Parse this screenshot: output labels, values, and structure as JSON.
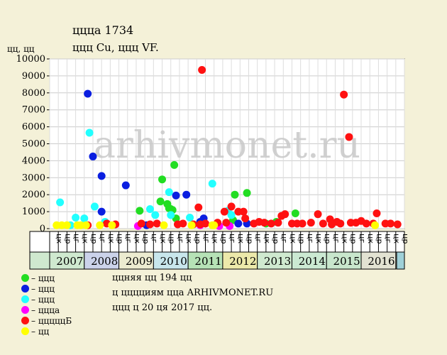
{
  "header": {
    "title": "ццца 1734",
    "subtitle": "ццц Cu, ццц VF.",
    "y_unit": "цц, цц"
  },
  "watermark": "arhivmonet.ru",
  "legend": [
    {
      "label": "– ццц",
      "color": "#22dd22"
    },
    {
      "label": "– ццц",
      "color": "#0a1ee0"
    },
    {
      "label": "– ццц",
      "color": "#22ffff"
    },
    {
      "label": "– ццца",
      "color": "#ff00ff"
    },
    {
      "label": "– цццццБ",
      "color": "#ff1111"
    },
    {
      "label": "– цц",
      "color": "#ffff00"
    }
  ],
  "notes": [
    "ццняя цц 194 цц",
    "ц цццциям ццa ARHIVMONET.RU",
    "ццц ц 20 ця 2017 цц."
  ],
  "chart_data": {
    "type": "scatter",
    "ylim": [
      0,
      10000
    ],
    "yticks": [
      0,
      1000,
      2000,
      3000,
      4000,
      5000,
      6000,
      7000,
      8000,
      9000,
      10000
    ],
    "xlim": [
      2006.5,
      2016.75
    ],
    "quarter_labels": [
      "цк",
      "цр",
      "цг",
      "цк",
      "цр",
      "цг",
      "цк",
      "цр",
      "цг",
      "цк",
      "цр",
      "цг",
      "цк",
      "цр",
      "цг",
      "цк",
      "цр",
      "цг",
      "цк",
      "цр",
      "цг",
      "цк",
      "цр",
      "цг",
      "цк",
      "цр",
      "цг",
      "цк",
      "цр",
      "цг",
      "цк",
      "цр",
      "цг",
      "цк",
      "цр",
      "цг",
      "цк",
      "цр",
      "цг",
      "цк",
      "цр",
      "цг"
    ],
    "years": [
      {
        "label": "2007",
        "color": "#cfe9cf"
      },
      {
        "label": "2008",
        "color": "#cbd2ea"
      },
      {
        "label": "2009",
        "color": "#ecebd0"
      },
      {
        "label": "2010",
        "color": "#c8e6ec"
      },
      {
        "label": "2011",
        "color": "#b6e2b6"
      },
      {
        "label": "2012",
        "color": "#ece9aa"
      },
      {
        "label": "2013",
        "color": "#cfe9cf"
      },
      {
        "label": "2014",
        "color": "#cbe9d2"
      },
      {
        "label": "2015",
        "color": "#c8e6cc"
      },
      {
        "label": "2016",
        "color": "#e2e2d2"
      }
    ],
    "year_start": 2006.5,
    "year_end_partial": 2016.75,
    "series": [
      {
        "name": "ццц",
        "color": "#22dd22",
        "points": [
          [
            2009.1,
            1050
          ],
          [
            2009.7,
            1600
          ],
          [
            2009.75,
            2900
          ],
          [
            2009.9,
            1450
          ],
          [
            2009.95,
            1200
          ],
          [
            2010.0,
            1150
          ],
          [
            2010.05,
            1100
          ],
          [
            2010.1,
            3750
          ],
          [
            2010.15,
            600
          ],
          [
            2011.85,
            2000
          ],
          [
            2012.2,
            2100
          ],
          [
            2011.8,
            500
          ],
          [
            2012.75,
            300
          ],
          [
            2013.6,
            900
          ],
          [
            2013.05,
            400
          ]
        ]
      },
      {
        "name": "ццц",
        "color": "#0a1ee0",
        "points": [
          [
            2007.6,
            7950
          ],
          [
            2007.75,
            4250
          ],
          [
            2008.0,
            3100
          ],
          [
            2008.0,
            1000
          ],
          [
            2008.7,
            2550
          ],
          [
            2009.3,
            200
          ],
          [
            2010.15,
            1950
          ],
          [
            2010.45,
            2000
          ],
          [
            2010.95,
            600
          ],
          [
            2010.85,
            400
          ],
          [
            2012.2,
            300
          ],
          [
            2011.95,
            300
          ]
        ]
      },
      {
        "name": "ццц",
        "color": "#22ffff",
        "points": [
          [
            2006.8,
            1550
          ],
          [
            2007.25,
            650
          ],
          [
            2007.5,
            600
          ],
          [
            2007.65,
            5650
          ],
          [
            2007.8,
            1300
          ],
          [
            2008.1,
            400
          ],
          [
            2009.4,
            1150
          ],
          [
            2009.55,
            800
          ],
          [
            2009.95,
            2150
          ],
          [
            2010.0,
            800
          ],
          [
            2010.55,
            650
          ],
          [
            2011.2,
            2650
          ],
          [
            2011.65,
            1050
          ],
          [
            2011.75,
            800
          ],
          [
            2007.1,
            200
          ]
        ]
      },
      {
        "name": "ццца",
        "color": "#ff00ff",
        "points": [
          [
            2009.05,
            150
          ],
          [
            2010.85,
            200
          ],
          [
            2011.4,
            150
          ],
          [
            2011.7,
            150
          ]
        ]
      },
      {
        "name": "цццццБ",
        "color": "#ff1111",
        "points": [
          [
            2007.6,
            200
          ],
          [
            2008.15,
            300
          ],
          [
            2008.4,
            250
          ],
          [
            2009.15,
            300
          ],
          [
            2009.4,
            250
          ],
          [
            2009.6,
            300
          ],
          [
            2010.2,
            250
          ],
          [
            2010.35,
            300
          ],
          [
            2010.65,
            250
          ],
          [
            2010.85,
            250
          ],
          [
            2011.0,
            300
          ],
          [
            2010.8,
            1250
          ],
          [
            2010.9,
            9350
          ],
          [
            2011.35,
            350
          ],
          [
            2011.55,
            1000
          ],
          [
            2011.6,
            350
          ],
          [
            2011.75,
            1300
          ],
          [
            2011.95,
            1000
          ],
          [
            2012.1,
            1000
          ],
          [
            2012.15,
            600
          ],
          [
            2012.4,
            300
          ],
          [
            2012.55,
            400
          ],
          [
            2012.7,
            350
          ],
          [
            2012.9,
            300
          ],
          [
            2013.1,
            350
          ],
          [
            2013.2,
            750
          ],
          [
            2013.3,
            850
          ],
          [
            2013.5,
            300
          ],
          [
            2013.65,
            300
          ],
          [
            2013.8,
            300
          ],
          [
            2014.05,
            350
          ],
          [
            2014.25,
            850
          ],
          [
            2014.4,
            300
          ],
          [
            2014.6,
            550
          ],
          [
            2014.8,
            400
          ],
          [
            2014.9,
            300
          ],
          [
            2015.0,
            7900
          ],
          [
            2015.15,
            5400
          ],
          [
            2015.2,
            350
          ],
          [
            2015.35,
            350
          ],
          [
            2015.5,
            450
          ],
          [
            2015.65,
            300
          ],
          [
            2015.85,
            300
          ],
          [
            2015.95,
            900
          ],
          [
            2016.2,
            300
          ],
          [
            2016.35,
            300
          ],
          [
            2016.55,
            250
          ],
          [
            2014.65,
            250
          ]
        ]
      },
      {
        "name": "цц",
        "color": "#ffff00",
        "points": [
          [
            2006.7,
            200
          ],
          [
            2006.85,
            200
          ],
          [
            2007.0,
            200
          ],
          [
            2007.3,
            200
          ],
          [
            2007.4,
            200
          ],
          [
            2007.55,
            200
          ],
          [
            2007.95,
            200
          ],
          [
            2008.3,
            200
          ],
          [
            2009.8,
            200
          ],
          [
            2010.6,
            200
          ],
          [
            2011.2,
            200
          ],
          [
            2011.25,
            200
          ],
          [
            2015.9,
            200
          ]
        ]
      }
    ]
  }
}
